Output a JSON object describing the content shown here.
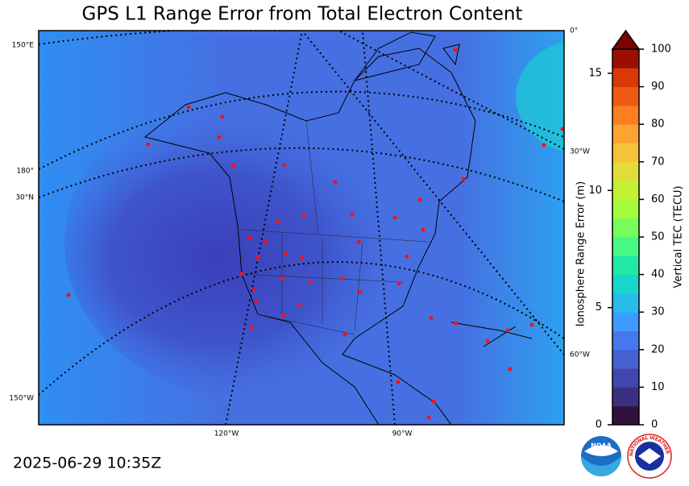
{
  "title": "GPS L1 Range Error from Total Electron Content",
  "timestamp": "2025-06-29 10:35Z",
  "map": {
    "graticule_labels": [
      "150°E",
      "180°",
      "30°N",
      "150°W",
      "120°W",
      "90°W",
      "0°",
      "30°W",
      "60°W"
    ]
  },
  "range_axis": {
    "label": "Ionosphere Range Error (m)",
    "lim": [
      0,
      16.03
    ],
    "ticks": [
      0,
      5,
      10,
      15
    ]
  },
  "colorbar": {
    "label": "Vertical TEC (TECU)",
    "lim": [
      0,
      100
    ],
    "ticks": [
      0,
      10,
      20,
      30,
      40,
      50,
      60,
      70,
      80,
      90,
      100
    ],
    "colors": [
      "#30123b",
      "#3b2f80",
      "#4146ac",
      "#4661d0",
      "#4777ef",
      "#3e9bfe",
      "#28bceb",
      "#18d6cb",
      "#20e9a5",
      "#46f884",
      "#78fe5a",
      "#a4fc3c",
      "#c4f133",
      "#e2dc38",
      "#f6c23a",
      "#fea331",
      "#fb7e21",
      "#ee5a12",
      "#d93807",
      "#991002"
    ],
    "extend_color": "#7a0403"
  },
  "logos": {
    "noaa": "NOAA",
    "nws": "NATIONAL WEATHER SERVICE"
  }
}
